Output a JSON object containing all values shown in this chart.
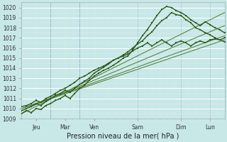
{
  "bg_color": "#c8e8e8",
  "xlabel": "Pression niveau de la mer( hPa )",
  "ylim": [
    1009,
    1020.5
  ],
  "xlim": [
    0,
    168
  ],
  "yticks": [
    1009,
    1010,
    1011,
    1012,
    1013,
    1014,
    1015,
    1016,
    1017,
    1018,
    1019,
    1020
  ],
  "xtick_labels": [
    "Jeu",
    "Mar",
    "Ven",
    "Sam",
    "Dim",
    "Lun"
  ],
  "xtick_positions": [
    12,
    36,
    60,
    96,
    132,
    156
  ],
  "vline_positions": [
    24,
    48,
    96,
    132,
    156
  ],
  "vline_color": "#6688aa",
  "tick_fontsize": 5.5,
  "xlabel_fontsize": 7,
  "series": [
    {
      "x": [
        0,
        168
      ],
      "y": [
        1010.0,
        1016.8
      ],
      "style": "line",
      "color": "#4a7a30",
      "lw": 0.7
    },
    {
      "x": [
        0,
        168
      ],
      "y": [
        1010.0,
        1017.2
      ],
      "style": "line",
      "color": "#4a7a30",
      "lw": 0.7
    },
    {
      "x": [
        0,
        168
      ],
      "y": [
        1009.8,
        1018.2
      ],
      "style": "line",
      "color": "#4a7a30",
      "lw": 0.7
    },
    {
      "x": [
        0,
        168
      ],
      "y": [
        1009.5,
        1019.5
      ],
      "style": "line",
      "color": "#4a7a30",
      "lw": 0.7
    },
    {
      "x": [
        0,
        4,
        8,
        12,
        16,
        20,
        24,
        28,
        32,
        36,
        40,
        44,
        48,
        52,
        56,
        60,
        64,
        68,
        72,
        76,
        80,
        84,
        88,
        92,
        96,
        100,
        104,
        108,
        112,
        116,
        120,
        124,
        128,
        132,
        136,
        140,
        144,
        148,
        152,
        156,
        160,
        164,
        168
      ],
      "y": [
        1009.5,
        1009.8,
        1009.6,
        1010.0,
        1009.9,
        1010.3,
        1010.5,
        1010.8,
        1011.0,
        1011.3,
        1011.0,
        1011.5,
        1012.0,
        1012.3,
        1012.8,
        1013.2,
        1013.5,
        1013.8,
        1014.0,
        1014.3,
        1014.6,
        1015.0,
        1015.2,
        1015.8,
        1016.5,
        1017.2,
        1017.8,
        1018.5,
        1019.2,
        1019.8,
        1020.1,
        1020.0,
        1019.7,
        1019.5,
        1019.2,
        1018.8,
        1018.5,
        1018.2,
        1018.6,
        1018.3,
        1018.0,
        1017.8,
        1017.5
      ],
      "style": "marker",
      "color": "#2d5a1b",
      "lw": 1.0,
      "ms": 1.5
    },
    {
      "x": [
        0,
        4,
        8,
        12,
        16,
        20,
        24,
        28,
        32,
        36,
        40,
        44,
        48,
        52,
        56,
        60,
        64,
        68,
        72,
        76,
        80,
        84,
        88,
        92,
        96,
        100,
        104,
        108,
        112,
        116,
        120,
        124,
        128,
        132,
        136,
        140,
        144,
        148,
        152,
        156,
        160,
        164,
        168
      ],
      "y": [
        1009.8,
        1010.0,
        1010.2,
        1010.5,
        1010.3,
        1010.7,
        1011.0,
        1011.3,
        1011.5,
        1011.8,
        1011.6,
        1012.0,
        1012.4,
        1012.7,
        1013.0,
        1013.5,
        1013.8,
        1014.1,
        1014.4,
        1014.8,
        1015.0,
        1015.3,
        1015.6,
        1016.0,
        1016.4,
        1016.7,
        1017.2,
        1017.6,
        1018.2,
        1018.7,
        1019.0,
        1019.5,
        1019.3,
        1019.2,
        1018.8,
        1018.5,
        1018.0,
        1017.8,
        1017.5,
        1017.3,
        1017.0,
        1016.8,
        1016.6
      ],
      "style": "marker",
      "color": "#2d5a1b",
      "lw": 1.0,
      "ms": 1.5
    },
    {
      "x": [
        0,
        4,
        8,
        12,
        16,
        20,
        24,
        28,
        32,
        36,
        40,
        44,
        48,
        52,
        56,
        60,
        64,
        68,
        72,
        76,
        80,
        84,
        88,
        92,
        96,
        100,
        104,
        108,
        112,
        116,
        120,
        124,
        128,
        132,
        136,
        140,
        144,
        148,
        152,
        156,
        160,
        164,
        168
      ],
      "y": [
        1010.2,
        1010.3,
        1010.5,
        1010.8,
        1010.6,
        1011.0,
        1011.2,
        1011.5,
        1011.8,
        1012.0,
        1012.3,
        1012.6,
        1013.0,
        1013.2,
        1013.5,
        1013.8,
        1014.0,
        1014.2,
        1014.5,
        1014.8,
        1015.0,
        1015.2,
        1015.4,
        1015.7,
        1016.0,
        1016.2,
        1016.5,
        1016.2,
        1016.5,
        1016.8,
        1016.5,
        1016.2,
        1016.5,
        1016.7,
        1016.5,
        1016.2,
        1016.5,
        1016.7,
        1016.5,
        1016.8,
        1016.9,
        1016.8,
        1017.0
      ],
      "style": "marker",
      "color": "#2d5a1b",
      "lw": 1.0,
      "ms": 1.5
    }
  ]
}
